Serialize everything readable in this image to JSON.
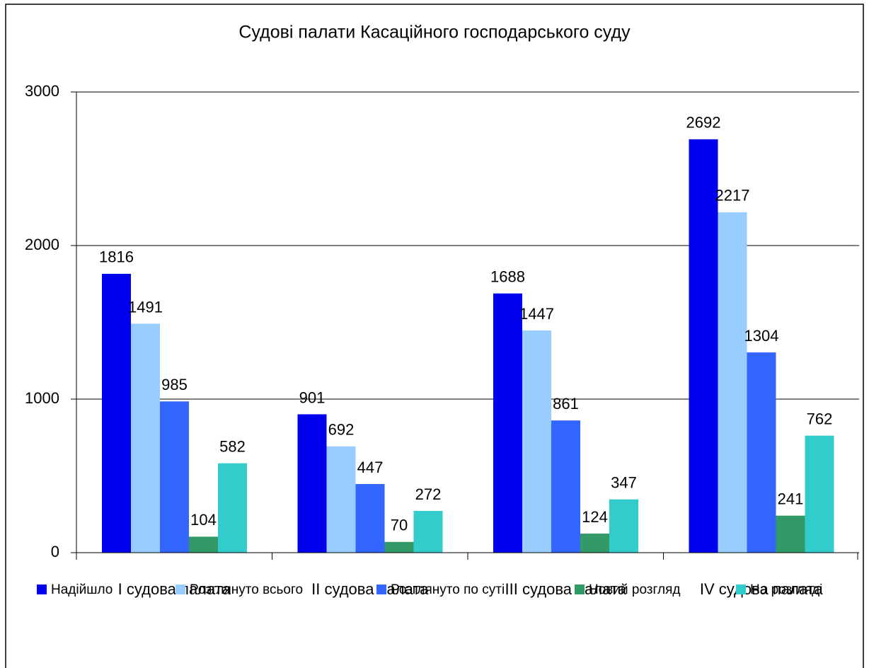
{
  "chart_data": {
    "type": "bar",
    "title": "Судові палати Касаційного господарського суду",
    "categories": [
      "I судова палата",
      "II судова палата",
      "III судова палата",
      "IV судова палата"
    ],
    "series": [
      {
        "name": "Надійшло",
        "color": "#0000ee",
        "values": [
          1816,
          901,
          1688,
          2692
        ]
      },
      {
        "name": "Розглянуто всього",
        "color": "#99ccff",
        "values": [
          1491,
          692,
          1447,
          2217
        ]
      },
      {
        "name": "Розглянуто по суті",
        "color": "#3366ff",
        "values": [
          985,
          447,
          861,
          1304
        ]
      },
      {
        "name": "Новий розгляд",
        "color": "#339966",
        "values": [
          104,
          70,
          124,
          241
        ]
      },
      {
        "name": "На розгляді",
        "color": "#33cccc",
        "values": [
          582,
          272,
          347,
          762
        ]
      }
    ],
    "ylim": [
      0,
      3000
    ],
    "yticks": [
      0,
      1000,
      2000,
      3000
    ],
    "grid": true,
    "legend": "bottom"
  }
}
